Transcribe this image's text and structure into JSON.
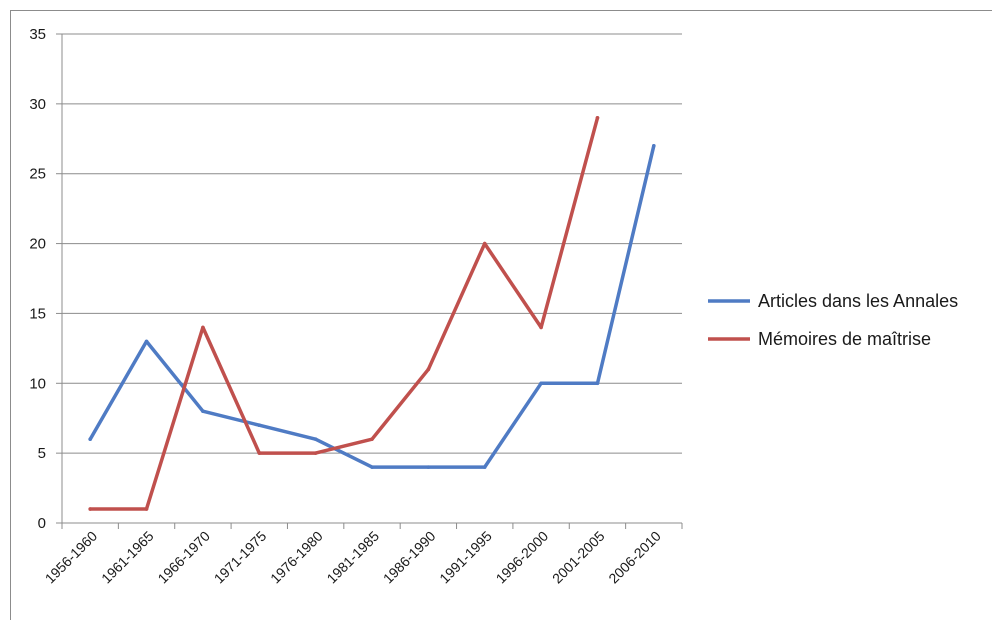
{
  "chart_data": {
    "type": "line",
    "categories": [
      "1956-1960",
      "1961-1965",
      "1966-1970",
      "1971-1975",
      "1976-1980",
      "1981-1985",
      "1986-1990",
      "1991-1995",
      "1996-2000",
      "2001-2005",
      "2006-2010"
    ],
    "series": [
      {
        "name": "Articles dans les Annales",
        "color": "#4f7bc4",
        "values": [
          6,
          13,
          8,
          7,
          6,
          4,
          4,
          4,
          10,
          10,
          27
        ]
      },
      {
        "name": "Mémoires de maîtrise",
        "color": "#c0504d",
        "values": [
          1,
          1,
          14,
          5,
          5,
          6,
          11,
          20,
          14,
          29,
          null
        ]
      }
    ],
    "ylim": [
      0,
      35
    ],
    "yticks": [
      "0",
      "5",
      "10",
      "15",
      "20",
      "25",
      "30",
      "35"
    ],
    "grid": true,
    "legend_position": "right"
  }
}
